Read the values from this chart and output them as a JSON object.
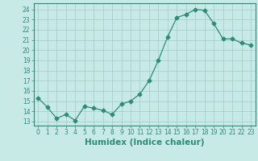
{
  "x": [
    0,
    1,
    2,
    3,
    4,
    5,
    6,
    7,
    8,
    9,
    10,
    11,
    12,
    13,
    14,
    15,
    16,
    17,
    18,
    19,
    20,
    21,
    22,
    23
  ],
  "y": [
    15.3,
    14.4,
    13.3,
    13.7,
    13.1,
    14.5,
    14.3,
    14.1,
    13.7,
    14.7,
    15.0,
    15.7,
    17.0,
    19.0,
    21.3,
    23.2,
    23.5,
    24.0,
    23.9,
    22.6,
    21.1,
    21.1,
    20.7,
    20.5
  ],
  "line_color": "#2e8b7a",
  "marker": "D",
  "marker_size": 2.5,
  "bg_color": "#c8eae6",
  "grid_color": "#a0ccc8",
  "xlabel": "Humidex (Indice chaleur)",
  "ylabel_ticks": [
    13,
    14,
    15,
    16,
    17,
    18,
    19,
    20,
    21,
    22,
    23,
    24
  ],
  "xlim": [
    -0.5,
    23.5
  ],
  "ylim": [
    12.6,
    24.6
  ],
  "xticks": [
    0,
    1,
    2,
    3,
    4,
    5,
    6,
    7,
    8,
    9,
    10,
    11,
    12,
    13,
    14,
    15,
    16,
    17,
    18,
    19,
    20,
    21,
    22,
    23
  ],
  "axis_color": "#2e8b7a",
  "tick_label_color": "#2e8b7a",
  "xlabel_color": "#2e8b7a",
  "tick_fontsize": 5.5,
  "xlabel_fontsize": 7.5
}
